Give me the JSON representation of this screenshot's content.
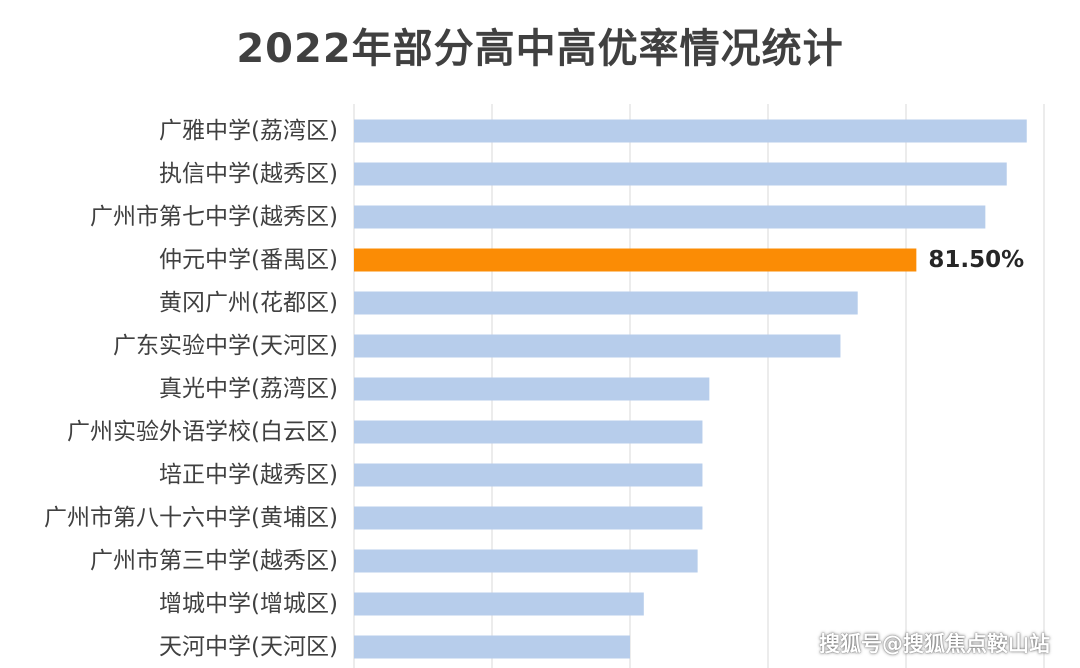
{
  "chart_data": {
    "type": "bar",
    "orientation": "horizontal",
    "title": "2022年部分高中高优率情况统计",
    "categories": [
      "广雅中学(荔湾区)",
      "执信中学(越秀区)",
      "广州市第七中学(越秀区)",
      "仲元中学(番禺区)",
      "黄冈广州(花都区)",
      "广东实验中学(天河区)",
      "真光中学(荔湾区)",
      "广州实验外语学校(白云区)",
      "培正中学(越秀区)",
      "广州市第八十六中学(黄埔区)",
      "广州市第三中学(越秀区)",
      "增城中学(增城区)",
      "天河中学(天河区)"
    ],
    "values": [
      97.5,
      94.6,
      91.5,
      81.5,
      73.0,
      70.5,
      51.5,
      50.5,
      50.5,
      50.5,
      49.8,
      42.0,
      40.0
    ],
    "data_labels": [
      {
        "category": "仲元中学(番禺区)",
        "text": "81.50%"
      }
    ],
    "highlight_category": "仲元中学(番禺区)",
    "xlim": [
      0,
      100
    ],
    "grid": true,
    "gridlines_at": [
      0,
      20,
      40,
      60,
      80,
      100
    ],
    "colors": {
      "bar": "#b7cdeb",
      "highlight": "#fb8c05",
      "grid": "#d9d9d9",
      "text": "#404040"
    }
  },
  "watermark": "搜狐号@搜狐焦点鞍山站"
}
